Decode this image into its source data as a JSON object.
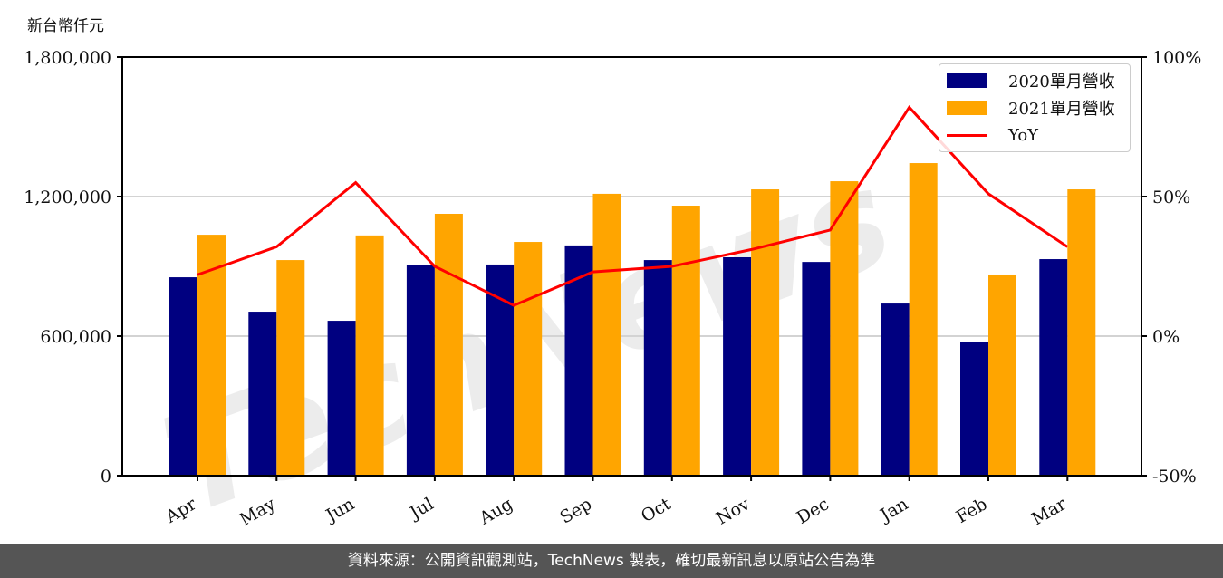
{
  "chart_data": {
    "type": "bar",
    "title": "",
    "ylabel": "新台幣仟元",
    "y2label": "",
    "xlabel": "",
    "ylim": [
      0,
      1800000
    ],
    "y2lim": [
      -50,
      100
    ],
    "yticks": [
      "0",
      "600,000",
      "1,200,000",
      "1,800,000"
    ],
    "y2ticks": [
      "-50%",
      "0%",
      "50%",
      "100%"
    ],
    "grid": true,
    "legend_position": "upper right",
    "categories": [
      "Apr",
      "May",
      "Jun",
      "Jul",
      "Aug",
      "Sep",
      "Oct",
      "Nov",
      "Dec",
      "Jan",
      "Feb",
      "Mar"
    ],
    "series": [
      {
        "name": "2020單月營收",
        "type": "bar",
        "color": "#000080",
        "axis": "left",
        "values": [
          853000,
          705000,
          666000,
          904000,
          908000,
          990000,
          927000,
          939000,
          919000,
          740000,
          573000,
          931000
        ]
      },
      {
        "name": "2021單月營收",
        "type": "bar",
        "color": "#FFA500",
        "axis": "left",
        "values": [
          1036000,
          927000,
          1033000,
          1126000,
          1005000,
          1212000,
          1161000,
          1231000,
          1266000,
          1344000,
          865000,
          1231000
        ]
      },
      {
        "name": "YoY",
        "type": "line",
        "color": "#FF0000",
        "axis": "right",
        "values": [
          22,
          32,
          55,
          25,
          11,
          23,
          25,
          31,
          38,
          82,
          51,
          32
        ]
      }
    ]
  },
  "header": {
    "unit_label": "新台幣仟元"
  },
  "legend": {
    "items": [
      {
        "label": "2020單月營收",
        "color": "#000080",
        "kind": "bar"
      },
      {
        "label": "2021單月營收",
        "color": "#FFA500",
        "kind": "bar"
      },
      {
        "label": "YoY",
        "color": "#FF0000",
        "kind": "line"
      }
    ]
  },
  "watermark": {
    "text": "TechNews"
  },
  "footer": {
    "text": "資料來源：公開資訊觀測站，TechNews 製表，確切最新訊息以原站公告為準"
  }
}
